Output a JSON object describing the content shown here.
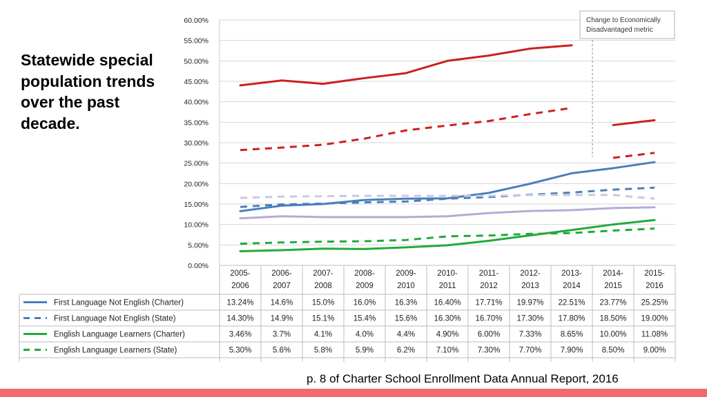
{
  "slide": {
    "title": "Statewide special population trends over the past decade.",
    "caption": "p. 8 of Charter School Enrollment Data Annual Report, 2016",
    "accent_color": "#f06a6a"
  },
  "chart_data": {
    "type": "line",
    "title": "",
    "xlabel": "",
    "ylabel": "",
    "ylim": [
      0,
      60
    ],
    "y_tick_labels": [
      "0.00%",
      "5.00%",
      "10.00%",
      "15.00%",
      "20.00%",
      "25.00%",
      "30.00%",
      "35.00%",
      "40.00%",
      "45.00%",
      "50.00%",
      "55.00%",
      "60.00%"
    ],
    "categories_top": [
      "2005-",
      "2006-",
      "2007-",
      "2008-",
      "2009-",
      "2010-",
      "2011-",
      "2012-",
      "2013-",
      "2014-",
      "2015-"
    ],
    "categories_bottom": [
      "2006",
      "2007",
      "2008",
      "2009",
      "2010",
      "2011",
      "2012",
      "2013",
      "2014",
      "2015",
      "2016"
    ],
    "annotation": {
      "line1": "Change to Economically",
      "line2": "Disadvantaged metric",
      "between": [
        8,
        9
      ]
    },
    "grid": true,
    "series": [
      {
        "name": "First Language Not English (Charter)",
        "color": "#4a7ebb",
        "dashed": false,
        "in_table": true,
        "values": [
          13.24,
          14.6,
          15.0,
          16.0,
          16.3,
          16.4,
          17.71,
          19.97,
          22.51,
          23.77,
          25.25
        ],
        "labels": [
          "13.24%",
          "14.6%",
          "15.0%",
          "16.0%",
          "16.3%",
          "16.40%",
          "17.71%",
          "19.97%",
          "22.51%",
          "23.77%",
          "25.25%"
        ]
      },
      {
        "name": "First Language Not English (State)",
        "color": "#4a7ebb",
        "dashed": true,
        "in_table": true,
        "values": [
          14.3,
          14.9,
          15.1,
          15.4,
          15.6,
          16.3,
          16.7,
          17.3,
          17.8,
          18.5,
          19.0
        ],
        "labels": [
          "14.30%",
          "14.9%",
          "15.1%",
          "15.4%",
          "15.6%",
          "16.30%",
          "16.70%",
          "17.30%",
          "17.80%",
          "18.50%",
          "19.00%"
        ]
      },
      {
        "name": "English Language Learners (Charter)",
        "color": "#1faa3a",
        "dashed": false,
        "in_table": true,
        "values": [
          3.46,
          3.7,
          4.1,
          4.0,
          4.4,
          4.9,
          6.0,
          7.33,
          8.65,
          10.0,
          11.08
        ],
        "labels": [
          "3.46%",
          "3.7%",
          "4.1%",
          "4.0%",
          "4.4%",
          "4.90%",
          "6.00%",
          "7.33%",
          "8.65%",
          "10.00%",
          "11.08%"
        ]
      },
      {
        "name": "English Language Learners (State)",
        "color": "#1faa3a",
        "dashed": true,
        "in_table": true,
        "values": [
          5.3,
          5.6,
          5.8,
          5.9,
          6.2,
          7.1,
          7.3,
          7.7,
          7.9,
          8.5,
          9.0
        ],
        "labels": [
          "5.30%",
          "5.6%",
          "5.8%",
          "5.9%",
          "6.2%",
          "7.10%",
          "7.30%",
          "7.70%",
          "7.90%",
          "8.50%",
          "9.00%"
        ]
      },
      {
        "name": "",
        "color": "#b8a8d6",
        "dashed": false,
        "in_table": false,
        "values": [
          11.5,
          12.0,
          11.8,
          11.8,
          11.8,
          12.0,
          12.8,
          13.3,
          13.5,
          14.0,
          14.2
        ]
      },
      {
        "name": "",
        "color": "#c8c8e0",
        "dashed": true,
        "in_table": false,
        "values": [
          16.5,
          16.8,
          16.9,
          17.0,
          17.0,
          17.0,
          17.0,
          17.2,
          17.2,
          17.2,
          16.3
        ]
      },
      {
        "name": "",
        "color": "#cc1f1f",
        "dashed": false,
        "in_table": false,
        "values": [
          44.0,
          45.2,
          44.4,
          45.8,
          47.0,
          50.0,
          51.3,
          53.0,
          53.8,
          34.3,
          35.5
        ],
        "breaks": [
          8
        ]
      },
      {
        "name": "",
        "color": "#cc1f1f",
        "dashed": true,
        "in_table": false,
        "values": [
          28.2,
          28.8,
          29.5,
          31.0,
          33.0,
          34.2,
          35.3,
          37.0,
          38.5,
          26.3,
          27.5
        ],
        "breaks": [
          8
        ]
      }
    ]
  }
}
